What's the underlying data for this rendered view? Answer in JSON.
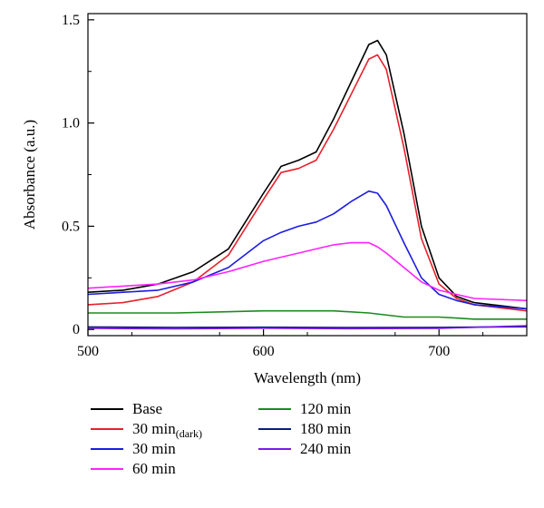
{
  "chart_data": {
    "type": "line",
    "title": "",
    "xlabel": "Wavelength (nm)",
    "ylabel": "Absorbance (a.u.)",
    "xlim": [
      500,
      750
    ],
    "ylim": [
      -0.03,
      1.53
    ],
    "x_ticks": [
      500,
      600,
      700
    ],
    "x_tick_labels": [
      "500",
      "600",
      "700"
    ],
    "y_ticks": [
      0,
      0.5,
      1.0,
      1.5
    ],
    "y_tick_labels": [
      "0",
      "0.5",
      "1.0",
      "1.5"
    ],
    "grid": false,
    "legend_position": "bottom",
    "series": [
      {
        "name": "Base",
        "color": "#000000",
        "x": [
          500,
          520,
          540,
          560,
          580,
          600,
          610,
          620,
          630,
          640,
          650,
          660,
          665,
          670,
          680,
          690,
          700,
          710,
          720,
          750
        ],
        "y": [
          0.18,
          0.19,
          0.22,
          0.28,
          0.39,
          0.66,
          0.79,
          0.82,
          0.86,
          1.02,
          1.2,
          1.38,
          1.4,
          1.33,
          0.95,
          0.5,
          0.25,
          0.16,
          0.13,
          0.1
        ]
      },
      {
        "name": "30 min(dark)",
        "color": "#e8202a",
        "x": [
          500,
          520,
          540,
          560,
          580,
          600,
          610,
          620,
          630,
          640,
          650,
          660,
          665,
          670,
          680,
          690,
          700,
          710,
          720,
          750
        ],
        "y": [
          0.12,
          0.13,
          0.16,
          0.23,
          0.36,
          0.63,
          0.76,
          0.78,
          0.82,
          0.97,
          1.14,
          1.31,
          1.33,
          1.26,
          0.88,
          0.44,
          0.22,
          0.15,
          0.12,
          0.09
        ]
      },
      {
        "name": "30 min",
        "color": "#1c1ce0",
        "x": [
          500,
          520,
          540,
          560,
          580,
          600,
          610,
          620,
          630,
          640,
          650,
          660,
          665,
          670,
          680,
          690,
          700,
          710,
          720,
          750
        ],
        "y": [
          0.17,
          0.18,
          0.19,
          0.23,
          0.3,
          0.43,
          0.47,
          0.5,
          0.52,
          0.56,
          0.62,
          0.67,
          0.66,
          0.6,
          0.42,
          0.25,
          0.17,
          0.14,
          0.12,
          0.1
        ]
      },
      {
        "name": "60 min",
        "color": "#ff22ff",
        "x": [
          500,
          520,
          540,
          560,
          580,
          600,
          610,
          620,
          630,
          640,
          650,
          660,
          665,
          670,
          680,
          690,
          700,
          710,
          720,
          750
        ],
        "y": [
          0.2,
          0.21,
          0.22,
          0.24,
          0.28,
          0.33,
          0.35,
          0.37,
          0.39,
          0.41,
          0.42,
          0.42,
          0.4,
          0.37,
          0.3,
          0.23,
          0.19,
          0.17,
          0.15,
          0.14
        ]
      },
      {
        "name": "120 min",
        "color": "#1d8a1d",
        "x": [
          500,
          550,
          600,
          620,
          640,
          660,
          680,
          700,
          720,
          750
        ],
        "y": [
          0.08,
          0.08,
          0.09,
          0.09,
          0.09,
          0.08,
          0.06,
          0.06,
          0.05,
          0.05
        ]
      },
      {
        "name": "180 min",
        "color": "#0b1d78",
        "x": [
          500,
          550,
          600,
          650,
          700,
          750
        ],
        "y": [
          0.012,
          0.01,
          0.011,
          0.009,
          0.01,
          0.013
        ]
      },
      {
        "name": "240 min",
        "color": "#7a1ae6",
        "x": [
          500,
          550,
          600,
          650,
          700,
          750
        ],
        "y": [
          0.005,
          0.003,
          0.006,
          0.004,
          0.005,
          0.018
        ]
      }
    ]
  },
  "legend": {
    "items": [
      {
        "label": "Base",
        "color": "#000000"
      },
      {
        "label": "30 min",
        "sub": "(dark)",
        "color": "#e8202a"
      },
      {
        "label": "30 min",
        "color": "#1c1ce0"
      },
      {
        "label": "60 min",
        "color": "#ff22ff"
      },
      {
        "label": "120 min",
        "color": "#1d8a1d"
      },
      {
        "label": "180 min",
        "color": "#0b1d78"
      },
      {
        "label": "240 min",
        "color": "#7a1ae6"
      }
    ]
  }
}
